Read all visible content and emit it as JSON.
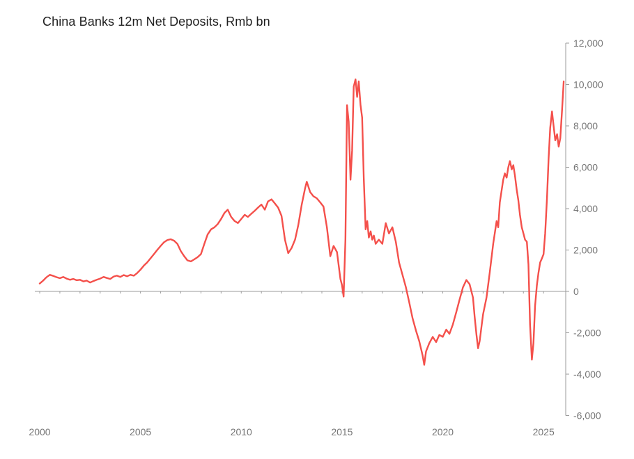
{
  "title": "China Banks 12m Net Deposits, Rmb bn",
  "colors": {
    "line": "#F4504B",
    "axis": "#9B9B9B",
    "tick_label": "#767676",
    "title": "#1F1F1F",
    "background": "#FFFFFF"
  },
  "chart_data": {
    "type": "line",
    "title": "China Banks 12m Net Deposits, Rmb bn",
    "xlabel": "",
    "ylabel": "",
    "grid": false,
    "legend": "none",
    "xlim": [
      2000,
      2026.1
    ],
    "ylim": [
      -6000,
      12000
    ],
    "x_ticks": [
      2000,
      2005,
      2010,
      2015,
      2020,
      2025
    ],
    "x_tick_labels": [
      "2000",
      "2005",
      "2010",
      "2015",
      "2020",
      "2025"
    ],
    "y_ticks": [
      -6000,
      -4000,
      -2000,
      0,
      2000,
      4000,
      6000,
      8000,
      10000,
      12000
    ],
    "y_tick_labels": [
      "-6,000",
      "-4,000",
      "-2,000",
      "0",
      "2,000",
      "4,000",
      "6,000",
      "8,000",
      "10,000",
      "12,000"
    ],
    "series": [
      {
        "name": "China Banks 12m Net Deposits",
        "color": "#F4504B",
        "points": [
          [
            2000.0,
            380
          ],
          [
            2000.17,
            520
          ],
          [
            2000.33,
            680
          ],
          [
            2000.5,
            800
          ],
          [
            2000.67,
            750
          ],
          [
            2000.83,
            690
          ],
          [
            2001.0,
            640
          ],
          [
            2001.17,
            700
          ],
          [
            2001.33,
            620
          ],
          [
            2001.5,
            560
          ],
          [
            2001.67,
            600
          ],
          [
            2001.83,
            540
          ],
          [
            2002.0,
            560
          ],
          [
            2002.17,
            480
          ],
          [
            2002.33,
            520
          ],
          [
            2002.5,
            430
          ],
          [
            2002.67,
            500
          ],
          [
            2002.83,
            560
          ],
          [
            2003.0,
            620
          ],
          [
            2003.17,
            700
          ],
          [
            2003.33,
            650
          ],
          [
            2003.5,
            600
          ],
          [
            2003.67,
            720
          ],
          [
            2003.83,
            760
          ],
          [
            2004.0,
            700
          ],
          [
            2004.17,
            790
          ],
          [
            2004.33,
            730
          ],
          [
            2004.5,
            800
          ],
          [
            2004.67,
            760
          ],
          [
            2004.83,
            880
          ],
          [
            2005.0,
            1050
          ],
          [
            2005.17,
            1250
          ],
          [
            2005.33,
            1400
          ],
          [
            2005.5,
            1600
          ],
          [
            2005.67,
            1800
          ],
          [
            2005.83,
            2000
          ],
          [
            2006.0,
            2200
          ],
          [
            2006.17,
            2380
          ],
          [
            2006.33,
            2480
          ],
          [
            2006.5,
            2520
          ],
          [
            2006.67,
            2450
          ],
          [
            2006.83,
            2300
          ],
          [
            2007.0,
            1950
          ],
          [
            2007.17,
            1700
          ],
          [
            2007.33,
            1500
          ],
          [
            2007.5,
            1450
          ],
          [
            2007.67,
            1550
          ],
          [
            2007.83,
            1650
          ],
          [
            2008.0,
            1800
          ],
          [
            2008.17,
            2300
          ],
          [
            2008.33,
            2750
          ],
          [
            2008.5,
            3000
          ],
          [
            2008.67,
            3100
          ],
          [
            2008.83,
            3250
          ],
          [
            2009.0,
            3500
          ],
          [
            2009.17,
            3800
          ],
          [
            2009.33,
            3950
          ],
          [
            2009.5,
            3600
          ],
          [
            2009.67,
            3400
          ],
          [
            2009.83,
            3300
          ],
          [
            2010.0,
            3500
          ],
          [
            2010.17,
            3700
          ],
          [
            2010.33,
            3600
          ],
          [
            2010.5,
            3750
          ],
          [
            2010.67,
            3900
          ],
          [
            2010.83,
            4050
          ],
          [
            2011.0,
            4200
          ],
          [
            2011.17,
            3950
          ],
          [
            2011.33,
            4350
          ],
          [
            2011.5,
            4450
          ],
          [
            2011.67,
            4250
          ],
          [
            2011.83,
            4050
          ],
          [
            2012.0,
            3650
          ],
          [
            2012.17,
            2500
          ],
          [
            2012.33,
            1850
          ],
          [
            2012.5,
            2100
          ],
          [
            2012.67,
            2500
          ],
          [
            2012.83,
            3200
          ],
          [
            2013.0,
            4200
          ],
          [
            2013.17,
            5000
          ],
          [
            2013.25,
            5300
          ],
          [
            2013.42,
            4800
          ],
          [
            2013.58,
            4600
          ],
          [
            2013.75,
            4500
          ],
          [
            2013.92,
            4300
          ],
          [
            2014.08,
            4100
          ],
          [
            2014.25,
            3100
          ],
          [
            2014.42,
            1700
          ],
          [
            2014.58,
            2200
          ],
          [
            2014.75,
            1900
          ],
          [
            2014.92,
            600
          ],
          [
            2015.0,
            300
          ],
          [
            2015.08,
            -250
          ],
          [
            2015.17,
            2500
          ],
          [
            2015.25,
            9000
          ],
          [
            2015.33,
            8200
          ],
          [
            2015.42,
            5400
          ],
          [
            2015.5,
            6800
          ],
          [
            2015.58,
            9900
          ],
          [
            2015.67,
            10250
          ],
          [
            2015.75,
            9400
          ],
          [
            2015.83,
            10150
          ],
          [
            2015.92,
            9000
          ],
          [
            2016.0,
            8400
          ],
          [
            2016.08,
            5500
          ],
          [
            2016.17,
            3000
          ],
          [
            2016.25,
            3400
          ],
          [
            2016.33,
            2600
          ],
          [
            2016.42,
            2900
          ],
          [
            2016.5,
            2500
          ],
          [
            2016.58,
            2700
          ],
          [
            2016.67,
            2300
          ],
          [
            2016.83,
            2500
          ],
          [
            2017.0,
            2300
          ],
          [
            2017.17,
            3300
          ],
          [
            2017.33,
            2800
          ],
          [
            2017.5,
            3100
          ],
          [
            2017.67,
            2400
          ],
          [
            2017.83,
            1400
          ],
          [
            2018.0,
            800
          ],
          [
            2018.17,
            200
          ],
          [
            2018.33,
            -500
          ],
          [
            2018.5,
            -1300
          ],
          [
            2018.67,
            -1900
          ],
          [
            2018.83,
            -2400
          ],
          [
            2019.0,
            -3100
          ],
          [
            2019.08,
            -3550
          ],
          [
            2019.17,
            -2900
          ],
          [
            2019.33,
            -2500
          ],
          [
            2019.5,
            -2200
          ],
          [
            2019.67,
            -2450
          ],
          [
            2019.83,
            -2100
          ],
          [
            2020.0,
            -2200
          ],
          [
            2020.17,
            -1850
          ],
          [
            2020.33,
            -2050
          ],
          [
            2020.5,
            -1600
          ],
          [
            2020.67,
            -1000
          ],
          [
            2020.83,
            -400
          ],
          [
            2021.0,
            200
          ],
          [
            2021.17,
            550
          ],
          [
            2021.33,
            350
          ],
          [
            2021.5,
            -300
          ],
          [
            2021.58,
            -1200
          ],
          [
            2021.67,
            -2100
          ],
          [
            2021.75,
            -2750
          ],
          [
            2021.83,
            -2400
          ],
          [
            2021.92,
            -1700
          ],
          [
            2022.0,
            -1100
          ],
          [
            2022.17,
            -300
          ],
          [
            2022.33,
            900
          ],
          [
            2022.5,
            2300
          ],
          [
            2022.67,
            3400
          ],
          [
            2022.75,
            3100
          ],
          [
            2022.83,
            4300
          ],
          [
            2023.0,
            5400
          ],
          [
            2023.08,
            5700
          ],
          [
            2023.17,
            5500
          ],
          [
            2023.25,
            6000
          ],
          [
            2023.33,
            6300
          ],
          [
            2023.42,
            5900
          ],
          [
            2023.5,
            6100
          ],
          [
            2023.58,
            5600
          ],
          [
            2023.67,
            4900
          ],
          [
            2023.75,
            4400
          ],
          [
            2023.83,
            3700
          ],
          [
            2023.92,
            3100
          ],
          [
            2024.0,
            2800
          ],
          [
            2024.08,
            2500
          ],
          [
            2024.17,
            2400
          ],
          [
            2024.25,
            1300
          ],
          [
            2024.33,
            -1600
          ],
          [
            2024.42,
            -3300
          ],
          [
            2024.5,
            -2500
          ],
          [
            2024.58,
            -700
          ],
          [
            2024.67,
            300
          ],
          [
            2024.75,
            900
          ],
          [
            2024.83,
            1400
          ],
          [
            2024.92,
            1600
          ],
          [
            2025.0,
            1800
          ],
          [
            2025.08,
            2800
          ],
          [
            2025.17,
            4500
          ],
          [
            2025.25,
            6400
          ],
          [
            2025.33,
            7900
          ],
          [
            2025.42,
            8700
          ],
          [
            2025.5,
            8000
          ],
          [
            2025.58,
            7300
          ],
          [
            2025.67,
            7600
          ],
          [
            2025.75,
            7000
          ],
          [
            2025.83,
            7400
          ],
          [
            2025.92,
            8800
          ],
          [
            2026.0,
            10150
          ]
        ]
      }
    ]
  }
}
